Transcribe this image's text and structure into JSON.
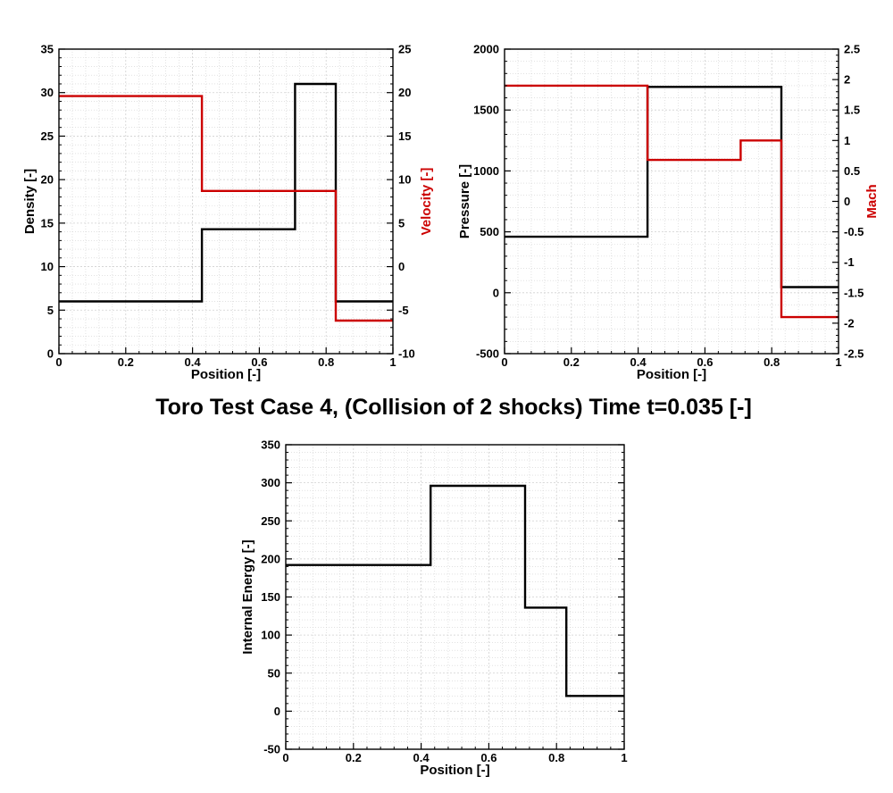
{
  "title": "Toro Test Case 4, (Collision of 2 shocks) Time t=0.035 [-]",
  "colors": {
    "left_series": "#000000",
    "right_series": "#cc0000",
    "frame": "#000000",
    "grid": "#d0d0d0"
  },
  "chart_data": [
    {
      "type": "line",
      "xlabel": "Position [-]",
      "ylabel": "Density [-]",
      "y2label": "Velocity [-]",
      "xlim": [
        0,
        1
      ],
      "ylim": [
        0,
        35
      ],
      "y2lim": [
        -10,
        25
      ],
      "xticks": [
        0,
        0.2,
        0.4,
        0.6,
        0.8,
        1
      ],
      "xticklabels": [
        "0",
        "0.2",
        "0.4",
        "0.6",
        "0.8",
        "1"
      ],
      "yticks": [
        0,
        5,
        10,
        15,
        20,
        25,
        30,
        35
      ],
      "yticklabels": [
        "0",
        "5",
        "10",
        "15",
        "20",
        "25",
        "30",
        "35"
      ],
      "y2ticks": [
        -10,
        -5,
        0,
        5,
        10,
        15,
        20,
        25
      ],
      "y2ticklabels": [
        "-10",
        "-5",
        "0",
        "5",
        "10",
        "15",
        "20",
        "25"
      ],
      "grid": true,
      "series": [
        {
          "axis": "left",
          "color": "#000000",
          "x": [
            0,
            0.428,
            0.428,
            0.707,
            0.707,
            0.829,
            0.829,
            1
          ],
          "y": [
            6.0,
            6.0,
            14.3,
            14.3,
            31.0,
            31.0,
            6.0,
            6.0
          ]
        },
        {
          "axis": "right",
          "color": "#cc0000",
          "x": [
            0,
            0.428,
            0.428,
            0.829,
            0.829,
            1
          ],
          "y": [
            19.6,
            19.6,
            8.7,
            8.7,
            -6.2,
            -6.2
          ]
        }
      ]
    },
    {
      "type": "line",
      "xlabel": "Position [-]",
      "ylabel": "Pressure [-]",
      "y2label": "Mach",
      "xlim": [
        0,
        1
      ],
      "ylim": [
        -500,
        2000
      ],
      "y2lim": [
        -2.5,
        2.5
      ],
      "xticks": [
        0,
        0.2,
        0.4,
        0.6,
        0.8,
        1
      ],
      "xticklabels": [
        "0",
        "0.2",
        "0.4",
        "0.6",
        "0.8",
        "1"
      ],
      "yticks": [
        -500,
        0,
        500,
        1000,
        1500,
        2000
      ],
      "yticklabels": [
        "-500",
        "0",
        "500",
        "1000",
        "1500",
        "2000"
      ],
      "y2ticks": [
        -2.5,
        -2,
        -1.5,
        -1,
        -0.5,
        0,
        0.5,
        1,
        1.5,
        2,
        2.5
      ],
      "y2ticklabels": [
        "-2.5",
        "-2",
        "-1.5",
        "-1",
        "-0.5",
        "0",
        "0.5",
        "1",
        "1.5",
        "2",
        "2.5"
      ],
      "grid": true,
      "series": [
        {
          "axis": "left",
          "color": "#000000",
          "x": [
            0,
            0.428,
            0.428,
            0.829,
            0.829,
            1
          ],
          "y": [
            460,
            460,
            1690,
            1690,
            46,
            46
          ]
        },
        {
          "axis": "right",
          "color": "#cc0000",
          "x": [
            0,
            0.428,
            0.428,
            0.707,
            0.707,
            0.829,
            0.829,
            1
          ],
          "y": [
            1.9,
            1.9,
            0.68,
            0.68,
            1.0,
            1.0,
            -1.9,
            -1.9
          ]
        }
      ]
    },
    {
      "type": "line",
      "xlabel": "Position [-]",
      "ylabel": "Internal Energy [-]",
      "xlim": [
        0,
        1
      ],
      "ylim": [
        -50,
        350
      ],
      "xticks": [
        0,
        0.2,
        0.4,
        0.6,
        0.8,
        1
      ],
      "xticklabels": [
        "0",
        "0.2",
        "0.4",
        "0.6",
        "0.8",
        "1"
      ],
      "yticks": [
        -50,
        0,
        50,
        100,
        150,
        200,
        250,
        300,
        350
      ],
      "yticklabels": [
        "-50",
        "0",
        "50",
        "100",
        "150",
        "200",
        "250",
        "300",
        "350"
      ],
      "grid": true,
      "series": [
        {
          "axis": "left",
          "color": "#000000",
          "x": [
            0,
            0.428,
            0.428,
            0.707,
            0.707,
            0.829,
            0.829,
            1
          ],
          "y": [
            192,
            192,
            296,
            296,
            136,
            136,
            20,
            20
          ]
        }
      ]
    }
  ]
}
